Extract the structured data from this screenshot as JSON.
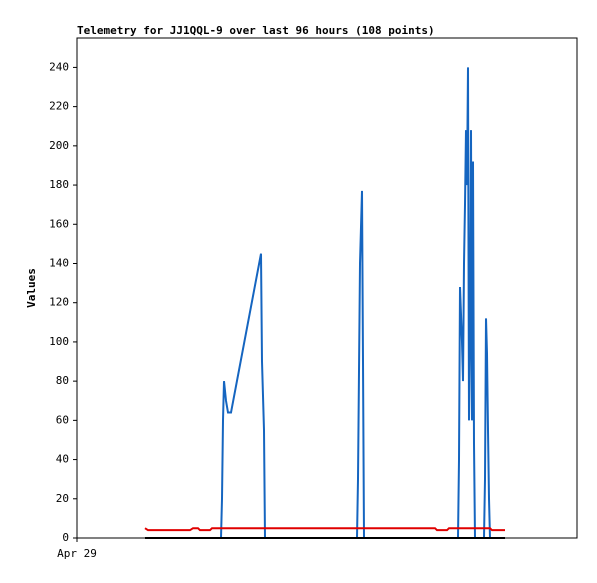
{
  "chart_data": {
    "type": "line",
    "title": "Telemetry for JJ1QQL-9 over last 96 hours (108 points)",
    "ylabel": "Values",
    "xlim": [
      0,
      100
    ],
    "xticks": [
      {
        "value": 0,
        "label": "Apr 29"
      }
    ],
    "ylim": [
      0,
      255
    ],
    "yticks": [
      0,
      20,
      40,
      60,
      80,
      100,
      120,
      140,
      160,
      180,
      200,
      220,
      240
    ],
    "grid": false,
    "series": [
      {
        "color": "#1565c0",
        "x": [
          13.6,
          28.8,
          29,
          29.2,
          29.4,
          29.8,
          30.2,
          30.8,
          36.8,
          37,
          37.4,
          37.6,
          56,
          56.2,
          56.6,
          57,
          57.2,
          57.4,
          76.2,
          76.4,
          76.6,
          77,
          77.2,
          77.4,
          77.6,
          77.8,
          78,
          78.2,
          78.4,
          78.6,
          78.8,
          79,
          79.2,
          79.4,
          79.6,
          81.4,
          81.6,
          81.8,
          82,
          82.2,
          82.4,
          82.6,
          85.6
        ],
        "values": [
          0,
          0,
          20,
          60,
          80,
          70,
          64,
          64,
          145,
          90,
          55,
          0,
          0,
          30,
          140,
          177,
          90,
          0,
          0,
          40,
          128,
          100,
          80,
          140,
          170,
          208,
          180,
          240,
          60,
          100,
          208,
          60,
          192,
          48,
          0,
          0,
          30,
          112,
          94,
          55,
          20,
          0,
          0
        ]
      },
      {
        "color": "#e00000",
        "x": [
          13.6,
          14.2,
          22.6,
          23.2,
          24.2,
          24.6,
          26.6,
          27,
          71.6,
          72,
          74,
          74.4,
          82.6,
          83,
          85.6
        ],
        "values": [
          5,
          4,
          4,
          5,
          5,
          4,
          4,
          5,
          5,
          4,
          4,
          5,
          5,
          4,
          4
        ]
      },
      {
        "color": "#000000",
        "x": [
          13.6,
          85.6
        ],
        "values": [
          0,
          0
        ]
      }
    ]
  }
}
